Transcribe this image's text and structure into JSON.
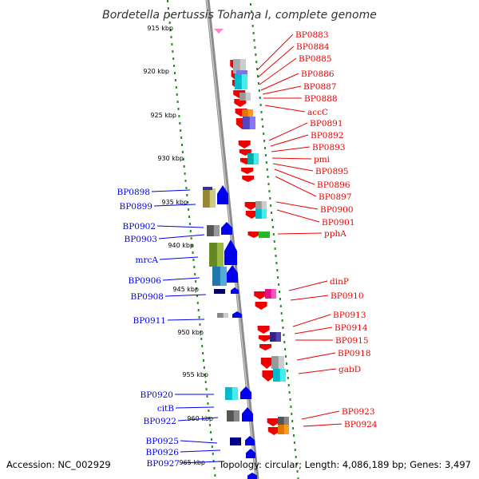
{
  "title": "Bordetella pertussis Tohama I, complete genome",
  "footer": {
    "accession": "Accession: NC_002929",
    "summary": "Topology: circular; Length: 4,086,189 bp; Genes: 3,497"
  },
  "colors": {
    "forward_strand": "#0000ee",
    "reverse_strand": "#ee0000",
    "scale_ticks": "#228b22",
    "backbone": "#8c8c8c"
  },
  "scale": [
    "915 kbp",
    "920 kbp",
    "925 kbp",
    "930 kbp",
    "935 kbp",
    "940 kbp",
    "945 kbp",
    "950 kbp",
    "955 kbp",
    "960 kbp",
    "965 kbp"
  ],
  "genes": {
    "reverse": [
      "BP0883",
      "BP0884",
      "BP0885",
      "BP0886",
      "BP0887",
      "BP0888",
      "accC",
      "BP0891",
      "BP0892",
      "BP0893",
      "pmi",
      "BP0895",
      "BP0896",
      "BP0897",
      "BP0900",
      "BP0901",
      "pphA",
      "dinP",
      "BP0910",
      "BP0913",
      "BP0914",
      "BP0915",
      "BP0918",
      "gabD",
      "BP0923",
      "BP0924"
    ],
    "forward": [
      "BP0898",
      "BP0899",
      "BP0902",
      "BP0903",
      "mrcA",
      "BP0906",
      "BP0908",
      "BP0911",
      "BP0920",
      "citB",
      "BP0922",
      "BP0925",
      "BP0926",
      "BP0927"
    ]
  }
}
